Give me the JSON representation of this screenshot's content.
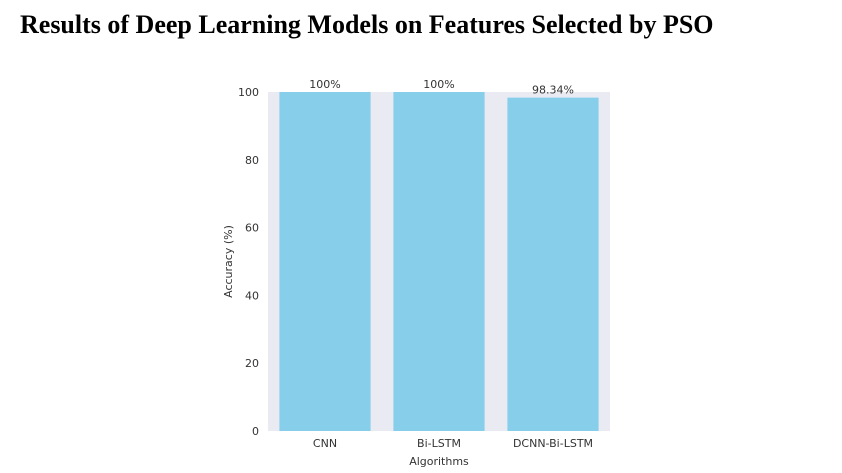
{
  "page": {
    "title": "Results of Deep Learning Models on Features Selected by PSO"
  },
  "chart_data": {
    "type": "bar",
    "title": "",
    "xlabel": "Algorithms",
    "ylabel": "Accuracy (%)",
    "categories": [
      "CNN",
      "Bi-LSTM",
      "DCNN-Bi-LSTM"
    ],
    "values": [
      100,
      100,
      98.34
    ],
    "data_labels": [
      "100%",
      "100%",
      "98.34%"
    ],
    "ylim": [
      0,
      100
    ],
    "yticks": [
      0,
      20,
      40,
      60,
      80,
      100
    ],
    "grid": false,
    "legend": "none",
    "colors": {
      "bar": "#87CEEB",
      "plot_background": "#EAEAF2"
    }
  }
}
